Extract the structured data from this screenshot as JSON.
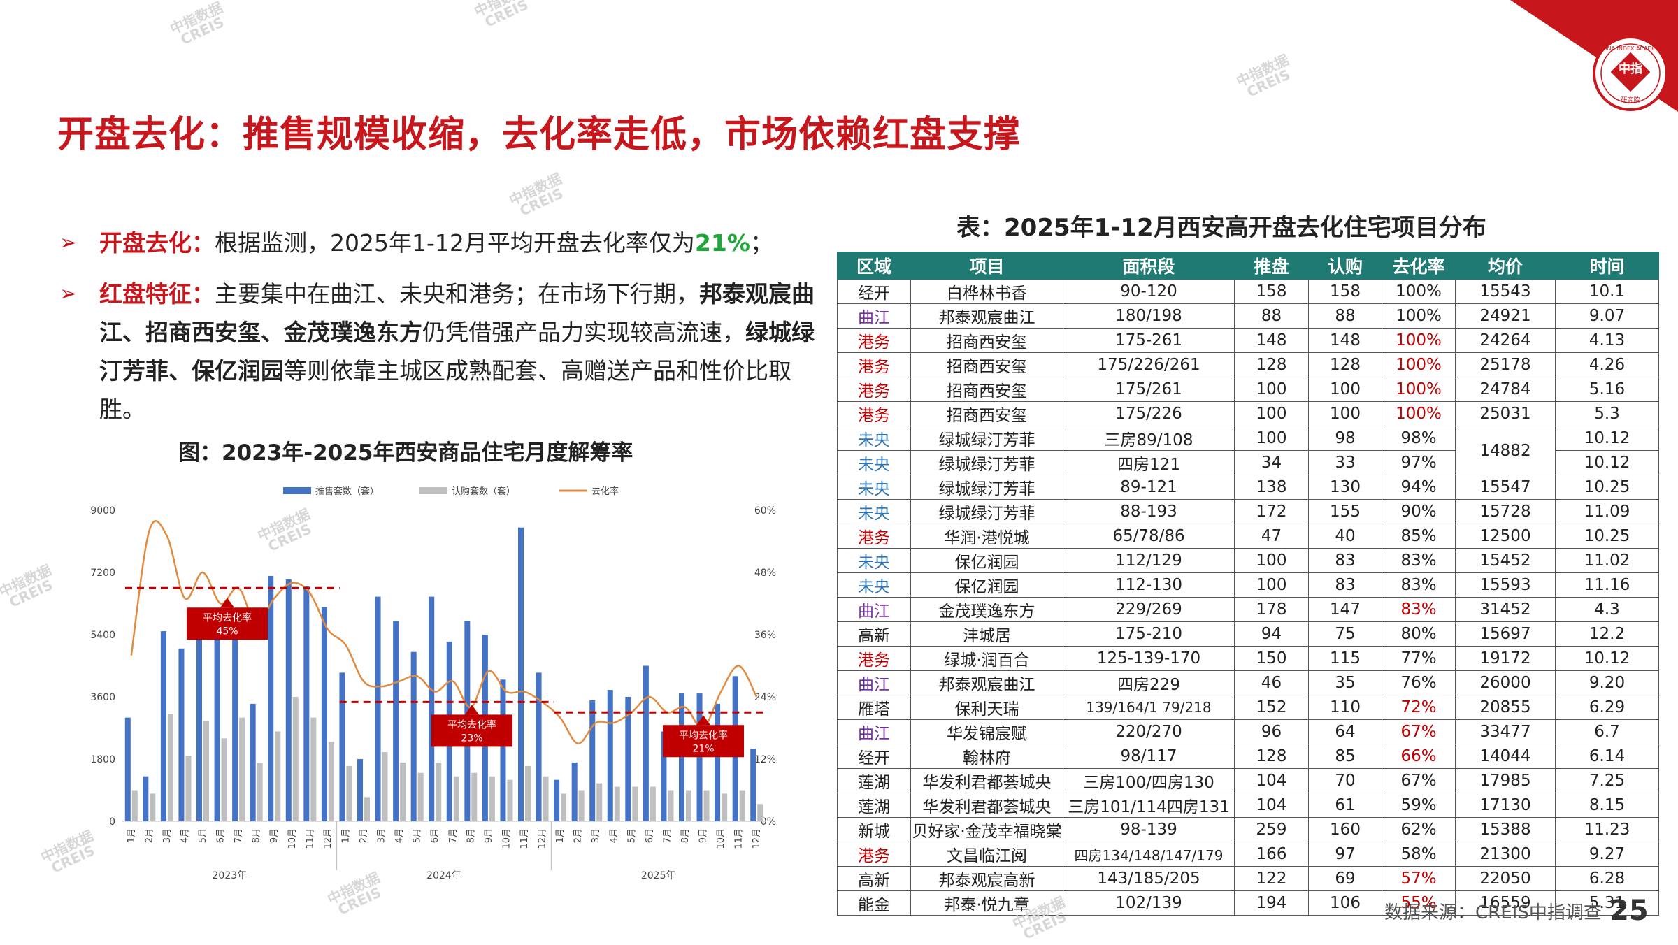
{
  "title": "开盘去化：推售规模收缩，去化率走低，市场依赖红盘支撑",
  "logo": {
    "top_text": "CHINA INDEX ACADEMY",
    "center_text": "中指",
    "bottom_text": "研究院"
  },
  "watermark": {
    "line1": "中指数据",
    "line2": "CREIS"
  },
  "bullets": {
    "b1": {
      "label": "开盘去化：",
      "text1": "根据监测，2025年1-12月平均开盘去化率仅为",
      "highlight": "21%",
      "text2": "；"
    },
    "b2": {
      "label": "红盘特征：",
      "text1": "主要集中在曲江、未央和港务；在市场下行期，",
      "bold1": "邦泰观宸曲江、招商西安玺、金茂璞逸东方",
      "text2": "仍凭借强产品力实现较高流速，",
      "bold2": "绿城绿汀芳菲、保亿润园",
      "text3": "等则依靠主城区成熟配套、高赠送产品和性价比取胜。"
    }
  },
  "figure_caption": "图：2023年-2025年西安商品住宅月度解筹率",
  "chart_data": {
    "type": "bar",
    "legend": [
      "推售套数（套）",
      "认购套数（套）",
      "去化率"
    ],
    "x": [
      "1月",
      "2月",
      "3月",
      "4月",
      "5月",
      "6月",
      "7月",
      "8月",
      "9月",
      "10月",
      "11月",
      "12月",
      "1月",
      "2月",
      "3月",
      "4月",
      "5月",
      "6月",
      "7月",
      "8月",
      "9月",
      "10月",
      "11月",
      "12月",
      "1月",
      "2月",
      "3月",
      "4月",
      "5月",
      "6月",
      "7月",
      "8月",
      "9月",
      "10月",
      "11月",
      "12月"
    ],
    "years": [
      "2023年",
      "2024年",
      "2025年"
    ],
    "y_left_ticks": [
      "0",
      "1800",
      "3600",
      "5400",
      "7200",
      "9000"
    ],
    "y_right_ticks": [
      "0%",
      "12%",
      "24%",
      "36%",
      "48%",
      "60%"
    ],
    "ylim_left": [
      0,
      9000
    ],
    "ylim_right": [
      0,
      60
    ],
    "series": [
      {
        "name": "推售套数（套）",
        "color": "#4472c4",
        "values": [
          3000,
          1300,
          5500,
          5000,
          5500,
          5500,
          5700,
          3400,
          7100,
          7000,
          6800,
          6200,
          4300,
          1800,
          6500,
          5800,
          4900,
          6500,
          5200,
          5800,
          5400,
          4100,
          8500,
          4300,
          1200,
          1700,
          3500,
          3800,
          3600,
          4500,
          2600,
          3700,
          3700,
          3400,
          4200,
          2100
        ]
      },
      {
        "name": "认购套数（套）",
        "color": "#bfbfbf",
        "values": [
          900,
          800,
          3100,
          1900,
          2900,
          2400,
          3000,
          1700,
          2600,
          3600,
          3000,
          2300,
          1600,
          700,
          2000,
          1700,
          1400,
          1700,
          1300,
          1400,
          1300,
          1200,
          1600,
          1300,
          800,
          900,
          1100,
          1000,
          1000,
          1000,
          900,
          900,
          900,
          800,
          900,
          500
        ]
      },
      {
        "name": "去化率",
        "color": "#e08b3f",
        "values": [
          32,
          56,
          55,
          43,
          48,
          42,
          45,
          38,
          43,
          46,
          44,
          37,
          34,
          27,
          26,
          27,
          28,
          25,
          27,
          22,
          29,
          25,
          25,
          23,
          20,
          15,
          19,
          19,
          21,
          24,
          21,
          22,
          18,
          25,
          30,
          24
        ]
      }
    ],
    "averages": [
      {
        "label": "平均去化率",
        "value": "45%",
        "rate": 45
      },
      {
        "label": "平均去化率",
        "value": "23%",
        "rate": 23
      },
      {
        "label": "平均去化率",
        "value": "21%",
        "rate": 21
      }
    ]
  },
  "table": {
    "caption": "表：2025年1-12月西安高开盘去化住宅项目分布",
    "headers": [
      "区域",
      "项目",
      "面积段",
      "推盘",
      "认购",
      "去化率",
      "均价",
      "时间"
    ],
    "rows": [
      {
        "cells": [
          "经开",
          "白桦林书香",
          "90-120",
          "158",
          "158",
          "100%",
          "15543",
          "10.1"
        ],
        "rc": "#222",
        "dc": "#222"
      },
      {
        "cells": [
          "曲江",
          "邦泰观宸曲江",
          "180/198",
          "88",
          "88",
          "100%",
          "24921",
          "9.07"
        ],
        "rc": "#7030a0",
        "dc": "#222"
      },
      {
        "cells": [
          "港务",
          "招商西安玺",
          "175-261",
          "148",
          "148",
          "100%",
          "24264",
          "4.13"
        ],
        "rc": "#c00000",
        "dc": "#c00000"
      },
      {
        "cells": [
          "港务",
          "招商西安玺",
          "175/226/261",
          "128",
          "128",
          "100%",
          "25178",
          "4.26"
        ],
        "rc": "#c00000",
        "dc": "#c00000"
      },
      {
        "cells": [
          "港务",
          "招商西安玺",
          "175/261",
          "100",
          "100",
          "100%",
          "24784",
          "5.16"
        ],
        "rc": "#c00000",
        "dc": "#c00000"
      },
      {
        "cells": [
          "港务",
          "招商西安玺",
          "175/226",
          "100",
          "100",
          "100%",
          "25031",
          "5.3"
        ],
        "rc": "#c00000",
        "dc": "#c00000"
      },
      {
        "cells": [
          "未央",
          "绿城绿汀芳菲",
          "三房89/108",
          "100",
          "98",
          "98%",
          "14882",
          "10.12"
        ],
        "rc": "#2e75b6",
        "dc": "#222",
        "span": 2
      },
      {
        "cells": [
          "未央",
          "绿城绿汀芳菲",
          "四房121",
          "34",
          "33",
          "97%",
          "",
          "10.12"
        ],
        "rc": "#2e75b6",
        "dc": "#222",
        "skip": true
      },
      {
        "cells": [
          "未央",
          "绿城绿汀芳菲",
          "89-121",
          "138",
          "130",
          "94%",
          "15547",
          "10.25"
        ],
        "rc": "#2e75b6",
        "dc": "#222"
      },
      {
        "cells": [
          "未央",
          "绿城绿汀芳菲",
          "88-193",
          "172",
          "155",
          "90%",
          "15728",
          "11.09"
        ],
        "rc": "#2e75b6",
        "dc": "#222"
      },
      {
        "cells": [
          "港务",
          "华润·港悦城",
          "65/78/86",
          "47",
          "40",
          "85%",
          "12500",
          "10.25"
        ],
        "rc": "#c00000",
        "dc": "#222"
      },
      {
        "cells": [
          "未央",
          "保亿润园",
          "112/129",
          "100",
          "83",
          "83%",
          "15452",
          "11.02"
        ],
        "rc": "#2e75b6",
        "dc": "#222"
      },
      {
        "cells": [
          "未央",
          "保亿润园",
          "112-130",
          "100",
          "83",
          "83%",
          "15593",
          "11.16"
        ],
        "rc": "#2e75b6",
        "dc": "#222"
      },
      {
        "cells": [
          "曲江",
          "金茂璞逸东方",
          "229/269",
          "178",
          "147",
          "83%",
          "31452",
          "4.3"
        ],
        "rc": "#7030a0",
        "dc": "#c00000"
      },
      {
        "cells": [
          "高新",
          "沣城居",
          "175-210",
          "94",
          "75",
          "80%",
          "15697",
          "12.2"
        ],
        "rc": "#222",
        "dc": "#222"
      },
      {
        "cells": [
          "港务",
          "绿城·润百合",
          "125-139-170",
          "150",
          "115",
          "77%",
          "19172",
          "10.12"
        ],
        "rc": "#c00000",
        "dc": "#222"
      },
      {
        "cells": [
          "曲江",
          "邦泰观宸曲江",
          "四房229",
          "46",
          "35",
          "76%",
          "26000",
          "9.20"
        ],
        "rc": "#7030a0",
        "dc": "#222"
      },
      {
        "cells": [
          "雁塔",
          "保利天瑞",
          "139/164/1 79/218",
          "152",
          "110",
          "72%",
          "20855",
          "6.29"
        ],
        "rc": "#222",
        "dc": "#c00000"
      },
      {
        "cells": [
          "曲江",
          "华发锦宸赋",
          "220/270",
          "96",
          "64",
          "67%",
          "33477",
          "6.7"
        ],
        "rc": "#7030a0",
        "dc": "#c00000"
      },
      {
        "cells": [
          "经开",
          "翰林府",
          "98/117",
          "128",
          "85",
          "66%",
          "14044",
          "6.14"
        ],
        "rc": "#222",
        "dc": "#c00000"
      },
      {
        "cells": [
          "莲湖",
          "华发利君都荟城央",
          "三房100/四房130",
          "104",
          "70",
          "67%",
          "17985",
          "7.25"
        ],
        "rc": "#222",
        "dc": "#222"
      },
      {
        "cells": [
          "莲湖",
          "华发利君都荟城央",
          "三房101/114四房131",
          "104",
          "61",
          "59%",
          "17130",
          "8.15"
        ],
        "rc": "#222",
        "dc": "#222"
      },
      {
        "cells": [
          "新城",
          "贝好家·金茂幸福晓棠",
          "98-139",
          "259",
          "160",
          "62%",
          "15388",
          "11.23"
        ],
        "rc": "#222",
        "dc": "#222"
      },
      {
        "cells": [
          "港务",
          "文昌临江阅",
          "四房134/148/147/179",
          "166",
          "97",
          "58%",
          "21300",
          "9.27"
        ],
        "rc": "#c00000",
        "dc": "#222"
      },
      {
        "cells": [
          "高新",
          "邦泰观宸高新",
          "143/185/205",
          "122",
          "69",
          "57%",
          "22050",
          "6.28"
        ],
        "rc": "#222",
        "dc": "#c00000"
      },
      {
        "cells": [
          "能金",
          "邦泰·悦九章",
          "102/139",
          "194",
          "106",
          "55%",
          "16559",
          "5.31"
        ],
        "rc": "#222",
        "dc": "#c00000"
      }
    ]
  },
  "source": "数据来源：CREIS中指调查",
  "page_number": "25"
}
